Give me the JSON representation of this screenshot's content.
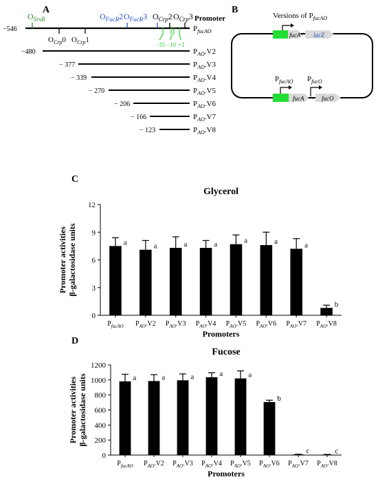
{
  "panel_a": {
    "label": "A",
    "header": "Promoter",
    "full_promoter": {
      "prefix": "P",
      "sub": "fucAO",
      "start": "−546"
    },
    "sites_top": [
      {
        "text": "O",
        "sub": "SrsR",
        "color": "#2e8b2e",
        "name": "site-srsr"
      },
      {
        "text": "O",
        "sub": "FucR",
        "suffix": "2",
        "color": "#1f4fbf",
        "name": "site-fucr2"
      },
      {
        "text": "O",
        "sub": "FucR",
        "suffix": "3",
        "color": "#1f4fbf",
        "name": "site-fucr3"
      },
      {
        "text": "O",
        "sub": "Crp",
        "suffix": "2",
        "color": "#000000",
        "name": "site-crp2"
      },
      {
        "text": "O",
        "sub": "Crp",
        "suffix": "3",
        "color": "#000000",
        "name": "site-crp3"
      }
    ],
    "sites_bottom": [
      {
        "text": "O",
        "sub": "Crp",
        "suffix": "0",
        "name": "site-crp0"
      },
      {
        "text": "O",
        "sub": "Crp",
        "suffix": "1",
        "name": "site-crp1"
      }
    ],
    "elements_green": [
      "−35",
      "−10",
      "+1"
    ],
    "variants": [
      {
        "start": "−480",
        "sub": "AO",
        "suffix": ".V2"
      },
      {
        "start": "− 377",
        "sub": "AO",
        "suffix": ".V3"
      },
      {
        "start": "− 339",
        "sub": "AO",
        "suffix": ".V4"
      },
      {
        "start": "− 270",
        "sub": "AO",
        "suffix": ".V5"
      },
      {
        "start": "− 206",
        "sub": "AO",
        "suffix": ".V6"
      },
      {
        "start": "− 166",
        "sub": "AO",
        "suffix": ".V7"
      },
      {
        "start": "− 123",
        "sub": "AO",
        "suffix": ".V8"
      }
    ]
  },
  "panel_b": {
    "label": "B",
    "versions_prefix": "Versions of P",
    "versions_sub": "fucAO",
    "gene1": "fucA",
    "gene2": "lacZ",
    "p1_sub": "fucAO",
    "p2_sub": "fucO",
    "gene3": "fucA",
    "gene4": "fucO",
    "colors": {
      "green": "#22dd33",
      "arrow": "#d9d9d9",
      "lacz": "#1f4fbf"
    }
  },
  "chart_data": [
    {
      "panel": "C",
      "type": "bar",
      "title": "Glycerol",
      "xlabel": "Promoters",
      "ylabel_line1": "Promoter activities",
      "ylabel_line2": "β-galactosidase units",
      "ylim": [
        0,
        12
      ],
      "yticks": [
        "0",
        "3",
        "6",
        "9",
        "12"
      ],
      "categories": [
        {
          "p": "P",
          "sub": "fucAO",
          "suffix": ""
        },
        {
          "p": "P",
          "sub": "AO",
          "suffix": ".V2"
        },
        {
          "p": "P",
          "sub": "AO",
          "suffix": ".V3"
        },
        {
          "p": "P",
          "sub": "AO",
          "suffix": ".V4"
        },
        {
          "p": "P",
          "sub": "AO",
          "suffix": ".V5"
        },
        {
          "p": "P",
          "sub": "AO",
          "suffix": ".V6"
        },
        {
          "p": "P",
          "sub": "AO",
          "suffix": ".V7"
        },
        {
          "p": "P",
          "sub": "AO",
          "suffix": ".V8"
        }
      ],
      "values": [
        7.5,
        7.1,
        7.3,
        7.3,
        7.7,
        7.6,
        7.2,
        0.8
      ],
      "errors": [
        0.9,
        1.0,
        1.2,
        0.8,
        1.0,
        1.4,
        1.1,
        0.3
      ],
      "letters": [
        "a",
        "a",
        "a",
        "a",
        "a",
        "a",
        "a",
        "b"
      ]
    },
    {
      "panel": "D",
      "type": "bar",
      "title": "Fucose",
      "xlabel": "Promoters",
      "ylabel_line1": "Promoter activities",
      "ylabel_line2": "β-galactosidase units",
      "ylim": [
        0,
        1200
      ],
      "yticks": [
        "0",
        "200",
        "400",
        "600",
        "800",
        "1000",
        "1200"
      ],
      "categories": [
        {
          "p": "P",
          "sub": "fucAO",
          "suffix": ""
        },
        {
          "p": "P",
          "sub": "AO",
          "suffix": ".V2"
        },
        {
          "p": "P",
          "sub": "AO",
          "suffix": ".V3"
        },
        {
          "p": "P",
          "sub": "AO",
          "suffix": ".V4"
        },
        {
          "p": "P",
          "sub": "AO",
          "suffix": ".V5"
        },
        {
          "p": "P",
          "sub": "AO",
          "suffix": ".V6"
        },
        {
          "p": "P",
          "sub": "AO",
          "suffix": ".V7"
        },
        {
          "p": "P",
          "sub": "AO",
          "suffix": ".V8"
        }
      ],
      "values": [
        980,
        985,
        995,
        1035,
        1020,
        705,
        8,
        6
      ],
      "errors": [
        95,
        85,
        85,
        60,
        100,
        25,
        3,
        3
      ],
      "letters": [
        "a",
        "a",
        "a",
        "a",
        "a",
        "b",
        "c",
        "c"
      ]
    }
  ]
}
